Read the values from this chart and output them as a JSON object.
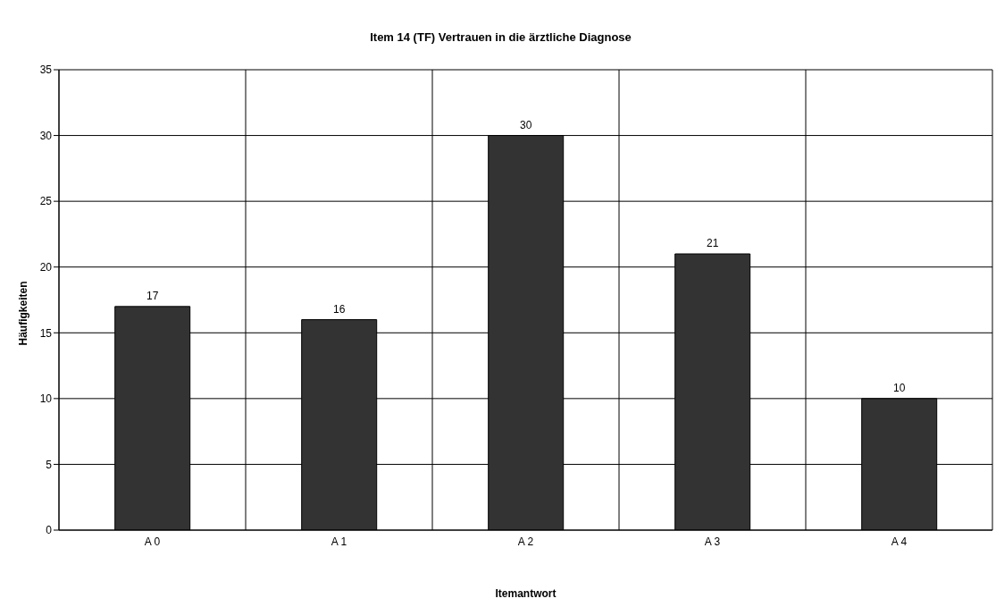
{
  "chart_data": {
    "type": "bar",
    "title": "Item 14 (TF) Vertrauen in die ärztliche Diagnose",
    "xlabel": "Itemantwort",
    "ylabel": "Häufigkeiten",
    "categories": [
      "A 0",
      "A 1",
      "A 2",
      "A 3",
      "A 4"
    ],
    "values": [
      17,
      16,
      30,
      21,
      10
    ],
    "color": "#333333",
    "ylim": [
      0,
      35
    ],
    "yticks": [
      0,
      5,
      10,
      15,
      20,
      25,
      30,
      35
    ],
    "grid": true,
    "data_labels": true
  }
}
